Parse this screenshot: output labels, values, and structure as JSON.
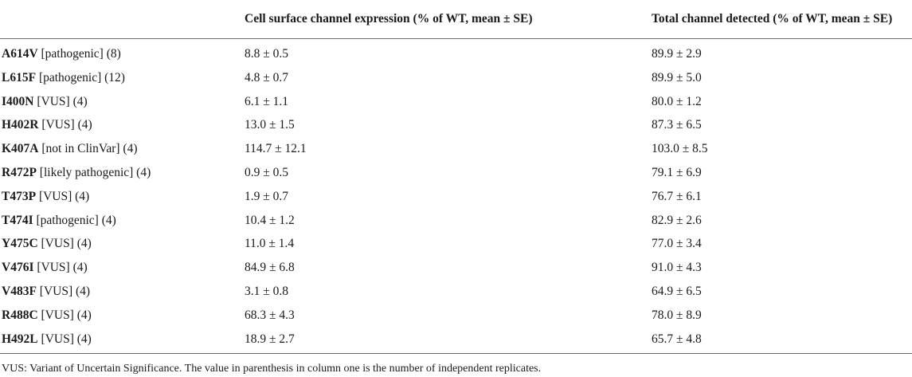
{
  "table": {
    "headers": [
      "",
      "Cell surface channel expression (% of WT, mean ± SE)",
      "Total channel detected (% of WT, mean ± SE)"
    ],
    "rows": [
      {
        "variant": "A614V",
        "detail": "[pathogenic] (8)",
        "surface": "8.8 ± 0.5",
        "total": "89.9 ± 2.9"
      },
      {
        "variant": "L615F",
        "detail": "[pathogenic] (12)",
        "surface": "4.8 ± 0.7",
        "total": "89.9 ± 5.0"
      },
      {
        "variant": "I400N",
        "detail": "[VUS] (4)",
        "surface": "6.1 ± 1.1",
        "total": "80.0 ± 1.2"
      },
      {
        "variant": "H402R",
        "detail": "[VUS] (4)",
        "surface": "13.0 ± 1.5",
        "total": "87.3 ± 6.5"
      },
      {
        "variant": "K407A",
        "detail": "[not in ClinVar] (4)",
        "surface": "114.7 ± 12.1",
        "total": "103.0 ± 8.5"
      },
      {
        "variant": "R472P",
        "detail": "[likely pathogenic] (4)",
        "surface": "0.9 ± 0.5",
        "total": "79.1 ± 6.9"
      },
      {
        "variant": "T473P",
        "detail": "[VUS] (4)",
        "surface": "1.9 ± 0.7",
        "total": "76.7 ± 6.1"
      },
      {
        "variant": "T474I",
        "detail": "[pathogenic] (4)",
        "surface": "10.4 ± 1.2",
        "total": "82.9 ± 2.6"
      },
      {
        "variant": "Y475C",
        "detail": "[VUS] (4)",
        "surface": "11.0 ± 1.4",
        "total": "77.0 ± 3.4"
      },
      {
        "variant": "V476I",
        "detail": "[VUS] (4)",
        "surface": "84.9 ± 6.8",
        "total": "91.0 ± 4.3"
      },
      {
        "variant": "V483F",
        "detail": "[VUS] (4)",
        "surface": "3.1 ± 0.8",
        "total": "64.9 ± 6.5"
      },
      {
        "variant": "R488C",
        "detail": "[VUS] (4)",
        "surface": "68.3 ± 4.3",
        "total": "78.0 ± 8.9"
      },
      {
        "variant": "H492L",
        "detail": "[VUS] (4)",
        "surface": "18.9 ± 2.7",
        "total": "65.7 ± 4.8"
      }
    ]
  },
  "footnote": "VUS: Variant of Uncertain Significance. The value in parenthesis in column one is the number of independent replicates."
}
